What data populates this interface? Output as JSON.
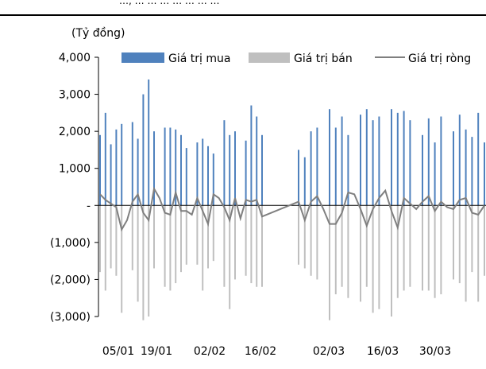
{
  "header": {
    "caption": "…, … … … … … … …"
  },
  "chart_data": {
    "type": "bar",
    "unit_label": "(Tỷ đồng)",
    "ylim": [
      -3000,
      4000
    ],
    "y_ticks": [
      {
        "value": 4000,
        "label": "4,000"
      },
      {
        "value": 3000,
        "label": "3,000"
      },
      {
        "value": 2000,
        "label": "2,000"
      },
      {
        "value": 1000,
        "label": "1,000"
      },
      {
        "value": 0,
        "label": "-"
      },
      {
        "value": -1000,
        "label": "(1,000)"
      },
      {
        "value": -2000,
        "label": "(2,000)"
      },
      {
        "value": -3000,
        "label": "(3,000)"
      }
    ],
    "x_tick_labels": [
      "05/01",
      "19/01",
      "02/02",
      "16/02",
      "02/03",
      "16/03",
      "30/03"
    ],
    "x_tick_index": [
      0,
      10,
      20,
      30,
      40,
      50,
      60
    ],
    "legend": [
      {
        "name": "Giá trị mua",
        "kind": "bar",
        "color": "#4f81bd"
      },
      {
        "name": "Giá trị bán",
        "kind": "bar",
        "color": "#bfbfbf"
      },
      {
        "name": "Giá trị ròng",
        "kind": "line",
        "color": "#7f7f7f"
      }
    ],
    "series": [
      {
        "name": "Giá trị mua",
        "color": "#4f81bd",
        "values": [
          1900,
          2500,
          1650,
          2050,
          2200,
          0,
          2250,
          1800,
          3000,
          3400,
          2000,
          0,
          2100,
          2100,
          2050,
          1900,
          1550,
          0,
          1700,
          1800,
          1600,
          1400,
          0,
          2300,
          1900,
          2000,
          0,
          1750,
          2700,
          2400,
          1900
        ]
      },
      {
        "name": "Giá trị bán",
        "color": "#bfbfbf",
        "values": [
          -1800,
          -2300,
          -1700,
          -1900,
          -2900,
          0,
          -1750,
          -2600,
          -3100,
          -3000,
          -1700,
          0,
          -2200,
          -2300,
          -2100,
          -1800,
          -1600,
          0,
          -1600,
          -2300,
          -1700,
          -1500,
          0,
          -2200,
          -2800,
          -2000,
          0,
          -1900,
          -2100,
          -2200,
          -2200
        ]
      },
      {
        "name": "Giá trị ròng",
        "color": "#7f7f7f",
        "values": [
          300,
          150,
          50,
          -50,
          -650,
          -400,
          100,
          300,
          -200,
          -400,
          450,
          200,
          -200,
          -250,
          350,
          -150,
          -150,
          -250,
          200,
          -150,
          -500,
          300,
          200,
          -50,
          -400,
          200,
          -350,
          150,
          100,
          150,
          -300
        ]
      }
    ],
    "series_2": [
      {
        "name": "Giá trị mua",
        "color": "#4f81bd",
        "values": [
          1500,
          1300,
          2000,
          2100,
          0,
          2600,
          2100,
          2400,
          1900,
          0,
          2450,
          2600,
          2300,
          2400,
          0,
          2600,
          2500,
          2550,
          2300,
          0,
          1900,
          2350,
          1700,
          2400,
          0,
          2000,
          2450,
          2050,
          1850,
          2500,
          1700
        ]
      },
      {
        "name": "Giá trị bán",
        "color": "#bfbfbf",
        "values": [
          -1600,
          -1700,
          -1900,
          -2000,
          0,
          -3100,
          -2400,
          -2200,
          -2500,
          0,
          -2600,
          -2200,
          -2900,
          -2800,
          0,
          -3000,
          -2500,
          -2300,
          -2200,
          0,
          -2300,
          -2300,
          -2500,
          -2400,
          0,
          -2000,
          -2100,
          -2600,
          -1800,
          -2600,
          -1900
        ]
      },
      {
        "name": "Giá trị ròng",
        "color": "#7f7f7f",
        "values": [
          100,
          -400,
          100,
          250,
          -100,
          -500,
          -500,
          -200,
          350,
          300,
          -100,
          -550,
          -100,
          200,
          400,
          -150,
          -600,
          200,
          50,
          -100,
          100,
          250,
          -150,
          100,
          -50,
          -100,
          150,
          200,
          -200,
          -250,
          0
        ]
      }
    ]
  }
}
